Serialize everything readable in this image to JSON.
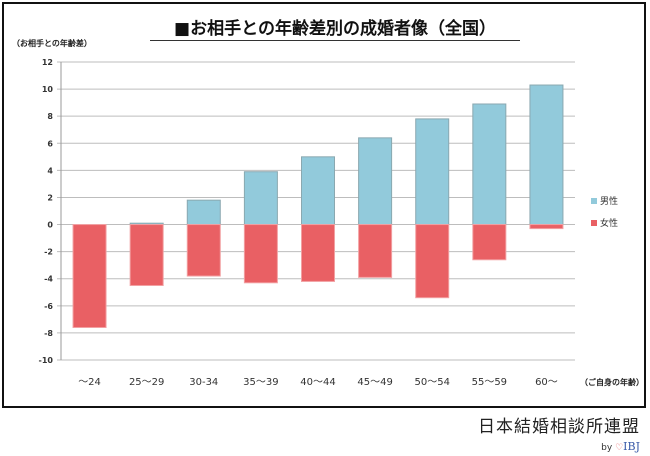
{
  "chart_data": {
    "type": "bar",
    "title": "■お相手との年齢差別の成婚者像（全国）",
    "ylabel": "（お相手との年齢差）",
    "xlabel": "（ご自身の年齢）",
    "categories": [
      "～24",
      "25～29",
      "30-34",
      "35～39",
      "40～44",
      "45～49",
      "50～54",
      "55～59",
      "60～"
    ],
    "series": [
      {
        "name": "男性",
        "color": "#92cadb",
        "values": [
          0,
          0.1,
          1.8,
          3.9,
          5.0,
          6.4,
          7.8,
          8.9,
          10.3
        ]
      },
      {
        "name": "女性",
        "color": "#e96064",
        "values": [
          -7.6,
          -4.5,
          -3.8,
          -4.3,
          -4.2,
          -3.9,
          -5.4,
          -2.6,
          -0.3
        ]
      }
    ],
    "ylim": [
      -10,
      12
    ],
    "yticks": [
      12,
      10,
      8,
      6,
      4,
      2,
      0,
      -2,
      -4,
      -6,
      -8,
      -10
    ],
    "grid": true,
    "legend": "right"
  },
  "footer": {
    "brand": "日本結婚相談所連盟",
    "by": "by",
    "logo": "IBJ"
  }
}
